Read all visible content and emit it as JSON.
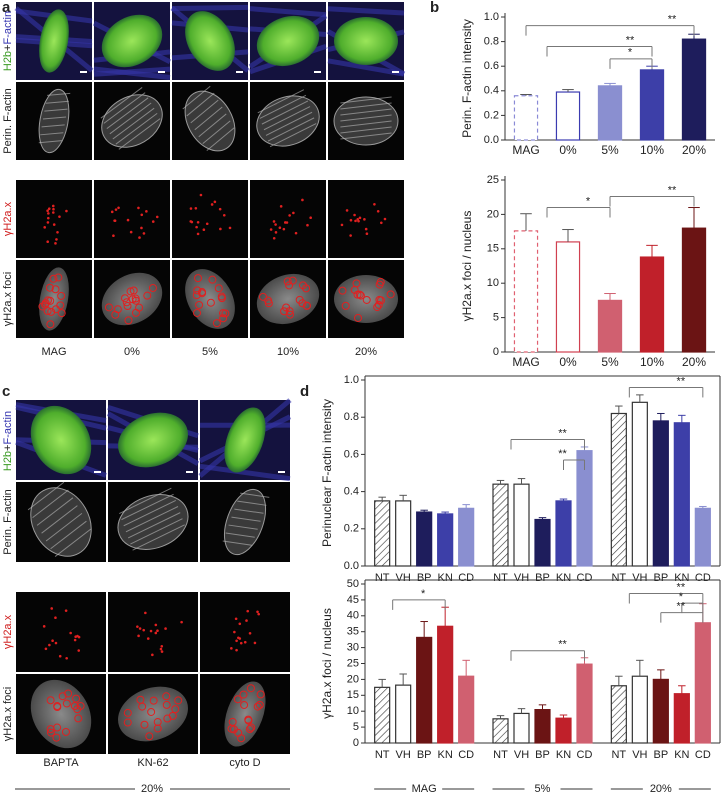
{
  "panel_labels": [
    "a",
    "b",
    "c",
    "d"
  ],
  "panel_a": {
    "stain_label": [
      "H2b",
      "+",
      "F-actin"
    ],
    "row_labels": [
      "Perin. F-actin",
      "γH2a.x",
      "γH2a.x foci"
    ],
    "columns": [
      "MAG",
      "0%",
      "5%",
      "10%",
      "20%"
    ]
  },
  "panel_c": {
    "stain_label": [
      "H2b",
      "+",
      "F-actin"
    ],
    "row_labels": [
      "Perin. F-actin",
      "γH2a.x",
      "γH2a.x foci"
    ],
    "columns": [
      "BAPTA",
      "KN-62",
      "cyto D"
    ],
    "footer": "20%"
  },
  "chart_data": [
    {
      "type": "bar",
      "ylabel": "Perin. F-actin intensity",
      "categories": [
        "MAG",
        "0%",
        "5%",
        "10%",
        "20%"
      ],
      "values": [
        0.36,
        0.39,
        0.44,
        0.57,
        0.82
      ],
      "error": [
        0.01,
        0.02,
        0.02,
        0.03,
        0.04
      ],
      "colors": [
        "#8a8ad6",
        "#3b3bb0",
        "#8a8fd0",
        "#3d3fa8",
        "#1e1d5c"
      ],
      "styles": [
        "dashed",
        "outline",
        "filled",
        "filled",
        "filled"
      ],
      "ylim": [
        0,
        1.0
      ],
      "yticks": [
        {
          "value": 0,
          "label": "0.0"
        },
        0.2,
        0.4,
        0.6,
        0.8,
        {
          "value": 1.0,
          "label": "1.0"
        }
      ],
      "annotations": [
        "**",
        "**",
        "*"
      ]
    },
    {
      "type": "bar",
      "ylabel": "γH2a.x foci / nucleus",
      "categories": [
        "MAG",
        "0%",
        "5%",
        "10%",
        "20%"
      ],
      "values": [
        17.6,
        16,
        7.5,
        13.8,
        18
      ],
      "error": [
        2.5,
        1.8,
        1,
        1.7,
        3
      ],
      "colors": [
        "#e06070",
        "#d04050",
        "#d06070",
        "#c0202a",
        "#6b1414"
      ],
      "styles": [
        "dashed",
        "outline",
        "filled",
        "filled",
        "filled"
      ],
      "ylim": [
        0,
        25
      ],
      "yticks": [
        0,
        5,
        10,
        15,
        20,
        25
      ],
      "annotations": [
        "*",
        "**"
      ]
    },
    {
      "type": "grouped_bar",
      "ylabel": "Perinuclear F-actin intensity",
      "categories": [
        null,
        null,
        null
      ],
      "series": [
        {
          "name": "NT",
          "style": "hatched",
          "color": "#333333",
          "values": [
            0.35,
            0.44,
            0.82
          ],
          "error": [
            0.02,
            0.02,
            0.04
          ]
        },
        {
          "name": "VH",
          "style": "outline",
          "color": "#333333",
          "values": [
            0.35,
            0.44,
            0.88
          ],
          "error": [
            0.03,
            0.03,
            0.04
          ]
        },
        {
          "name": "BP",
          "style": "filled",
          "color": "#1e1d5c",
          "values": [
            0.29,
            0.25,
            0.78
          ],
          "error": [
            0.01,
            0.01,
            0.04
          ]
        },
        {
          "name": "KN",
          "style": "filled",
          "color": "#3d3fa8",
          "values": [
            0.28,
            0.35,
            0.77
          ],
          "error": [
            0.01,
            0.01,
            0.04
          ]
        },
        {
          "name": "CD",
          "style": "filled",
          "color": "#8a8fd0",
          "values": [
            0.31,
            0.62,
            0.31
          ],
          "error": [
            0.02,
            0.02,
            0.01
          ]
        }
      ],
      "ylim": [
        0,
        1.0
      ],
      "yticks": [
        {
          "value": 0,
          "label": "0.0"
        },
        0.2,
        0.4,
        0.6,
        0.8,
        {
          "value": 1.0,
          "label": "1.0"
        }
      ],
      "annotations": [
        "**",
        "**",
        "**"
      ]
    },
    {
      "type": "grouped_bar",
      "ylabel": "γH2a.x foci / nucleus",
      "categories": [
        "MAG",
        "5%",
        "20%"
      ],
      "series": [
        {
          "name": "NT",
          "style": "hatched",
          "color": "#333333",
          "values": [
            17.5,
            7.6,
            18
          ],
          "error": [
            2.5,
            1,
            3
          ]
        },
        {
          "name": "VH",
          "style": "outline",
          "color": "#333333",
          "values": [
            18.2,
            9.3,
            21
          ],
          "error": [
            3.5,
            1.5,
            5
          ]
        },
        {
          "name": "BP",
          "style": "filled",
          "color": "#6b1414",
          "values": [
            33.2,
            10.5,
            20
          ],
          "error": [
            5,
            1.5,
            3
          ]
        },
        {
          "name": "KN",
          "style": "filled",
          "color": "#c0202a",
          "values": [
            36.7,
            7.8,
            15.5
          ],
          "error": [
            6,
            1,
            2.5
          ]
        },
        {
          "name": "CD",
          "style": "filled",
          "color": "#d06070",
          "values": [
            21,
            24.8,
            37.8
          ],
          "error": [
            5,
            2,
            6
          ]
        }
      ],
      "ylim": [
        0,
        50
      ],
      "yticks": [
        0,
        5,
        10,
        15,
        20,
        25,
        30,
        35,
        40,
        45,
        50
      ],
      "annotations": [
        "*",
        "**",
        "**",
        "*",
        "**"
      ]
    }
  ]
}
